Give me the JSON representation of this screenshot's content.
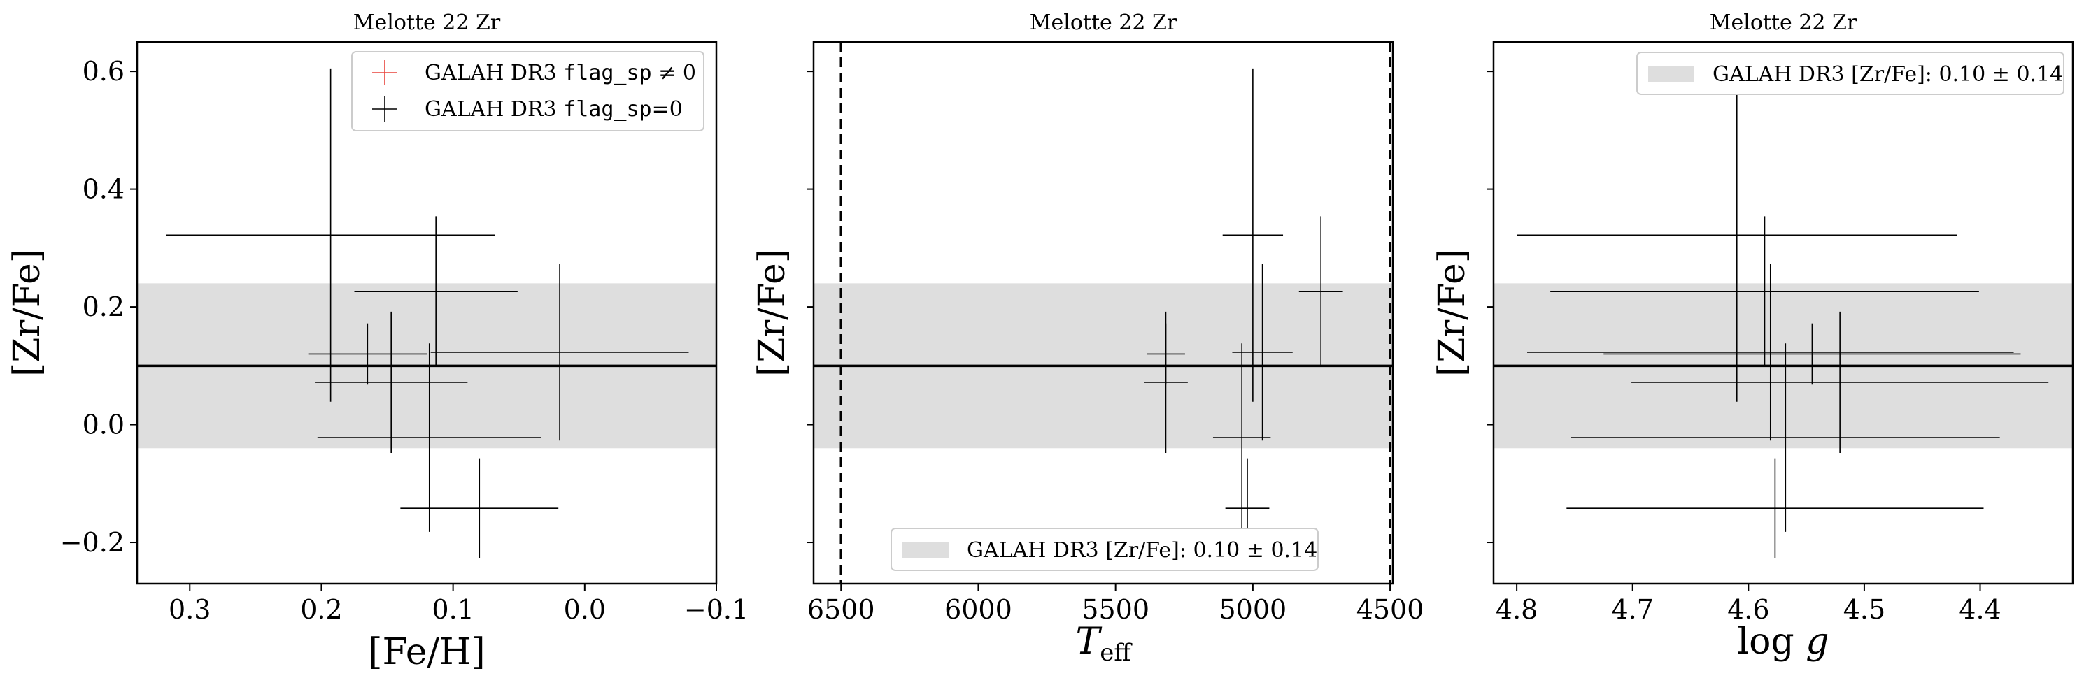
{
  "colors": {
    "band": "#dedede",
    "mean_line": "#000000",
    "errorbar_ok": "#000000",
    "errorbar_flagged": "#e8423a",
    "axes": "#000000"
  },
  "legend_text": {
    "flagged": "GALAH DR3 flag_sp ≠ 0",
    "clean": "GALAH DR3 flag_sp=0",
    "band": "GALAH DR3 [Zr/Fe]: 0.10 ± 0.14"
  },
  "chart_data": [
    {
      "type": "scatter",
      "title": "Melotte 22 Zr",
      "xlabel": "[Fe/H]",
      "ylabel": "[Zr/Fe]",
      "xlim": [
        0.34,
        -0.1
      ],
      "ylim": [
        -0.27,
        0.65
      ],
      "xticks": [
        0.3,
        0.2,
        0.1,
        0.0,
        -0.1
      ],
      "xtick_labels": [
        "0.3",
        "0.2",
        "0.1",
        "0.0",
        "−0.1"
      ],
      "yticks": [
        -0.2,
        0.0,
        0.2,
        0.4,
        0.6
      ],
      "ytick_labels": [
        "−0.2",
        "0.0",
        "0.2",
        "0.4",
        "0.6"
      ],
      "band": {
        "mean": 0.1,
        "std": 0.14
      },
      "legend": "top-right",
      "legend_entries": [
        "GALAH DR3 flag_sp ≠ 0",
        "GALAH DR3 flag_sp=0"
      ],
      "grid": false,
      "series": [
        {
          "name": "GALAH DR3 flag_sp ≠ 0",
          "points": []
        },
        {
          "name": "GALAH DR3 flag_sp=0",
          "points": [
            {
              "x": 0.193,
              "y": 0.322,
              "xerr": 0.125,
              "yerr": 0.283
            },
            {
              "x": 0.113,
              "y": 0.226,
              "xerr": 0.062,
              "yerr": 0.128
            },
            {
              "x": 0.019,
              "y": 0.123,
              "xerr": 0.098,
              "yerr": 0.15
            },
            {
              "x": 0.165,
              "y": 0.12,
              "xerr": 0.045,
              "yerr": 0.052
            },
            {
              "x": 0.147,
              "y": 0.072,
              "xerr": 0.058,
              "yerr": 0.12
            },
            {
              "x": 0.118,
              "y": -0.022,
              "xerr": 0.085,
              "yerr": 0.16
            },
            {
              "x": 0.08,
              "y": -0.142,
              "xerr": 0.06,
              "yerr": 0.085
            }
          ]
        }
      ]
    },
    {
      "type": "scatter",
      "title": "Melotte 22 Zr",
      "xlabel": "Teff",
      "ylabel": "[Zr/Fe]",
      "xlim": [
        6600,
        4490
      ],
      "ylim": [
        -0.27,
        0.65
      ],
      "xticks": [
        6500,
        6000,
        5500,
        5000,
        4500
      ],
      "xtick_labels": [
        "6500",
        "6000",
        "5500",
        "5000",
        "4500"
      ],
      "yticks": [
        -0.2,
        0.0,
        0.2,
        0.4,
        0.6
      ],
      "ytick_labels": [
        "",
        "",
        "",
        "",
        ""
      ],
      "vlines": [
        6500,
        4500
      ],
      "band": {
        "mean": 0.1,
        "std": 0.14
      },
      "legend": "bottom-center",
      "legend_entries": [
        "GALAH DR3 [Zr/Fe]: 0.10 ± 0.14"
      ],
      "grid": false,
      "series": [
        {
          "name": "GALAH DR3 flag_sp=0",
          "points": [
            {
              "x": 5000,
              "y": 0.322,
              "xerr": 110,
              "yerr": 0.283
            },
            {
              "x": 4752,
              "y": 0.226,
              "xerr": 80,
              "yerr": 0.128
            },
            {
              "x": 4965,
              "y": 0.123,
              "xerr": 110,
              "yerr": 0.15
            },
            {
              "x": 5317,
              "y": 0.12,
              "xerr": 70,
              "yerr": 0.052
            },
            {
              "x": 5317,
              "y": 0.072,
              "xerr": 80,
              "yerr": 0.12
            },
            {
              "x": 5040,
              "y": -0.022,
              "xerr": 105,
              "yerr": 0.16
            },
            {
              "x": 5020,
              "y": -0.142,
              "xerr": 80,
              "yerr": 0.085
            }
          ]
        }
      ]
    },
    {
      "type": "scatter",
      "title": "Melotte 22 Zr",
      "xlabel": "log g",
      "ylabel": "[Zr/Fe]",
      "xlim": [
        4.82,
        4.32
      ],
      "ylim": [
        -0.27,
        0.65
      ],
      "xticks": [
        4.8,
        4.7,
        4.6,
        4.5,
        4.4
      ],
      "xtick_labels": [
        "4.8",
        "4.7",
        "4.6",
        "4.5",
        "4.4"
      ],
      "yticks": [
        -0.2,
        0.0,
        0.2,
        0.4,
        0.6
      ],
      "ytick_labels": [
        "",
        "",
        "",
        "",
        ""
      ],
      "band": {
        "mean": 0.1,
        "std": 0.14
      },
      "legend": "top-right",
      "legend_entries": [
        "GALAH DR3 [Zr/Fe]: 0.10 ± 0.14"
      ],
      "grid": false,
      "series": [
        {
          "name": "GALAH DR3 flag_sp=0",
          "points": [
            {
              "x": 4.61,
              "y": 0.322,
              "xerr": 0.19,
              "yerr": 0.283
            },
            {
              "x": 4.586,
              "y": 0.226,
              "xerr": 0.185,
              "yerr": 0.128
            },
            {
              "x": 4.581,
              "y": 0.123,
              "xerr": 0.21,
              "yerr": 0.15
            },
            {
              "x": 4.545,
              "y": 0.12,
              "xerr": 0.18,
              "yerr": 0.052
            },
            {
              "x": 4.521,
              "y": 0.072,
              "xerr": 0.18,
              "yerr": 0.12
            },
            {
              "x": 4.568,
              "y": -0.022,
              "xerr": 0.185,
              "yerr": 0.16
            },
            {
              "x": 4.577,
              "y": -0.142,
              "xerr": 0.18,
              "yerr": 0.085
            }
          ]
        }
      ]
    }
  ]
}
